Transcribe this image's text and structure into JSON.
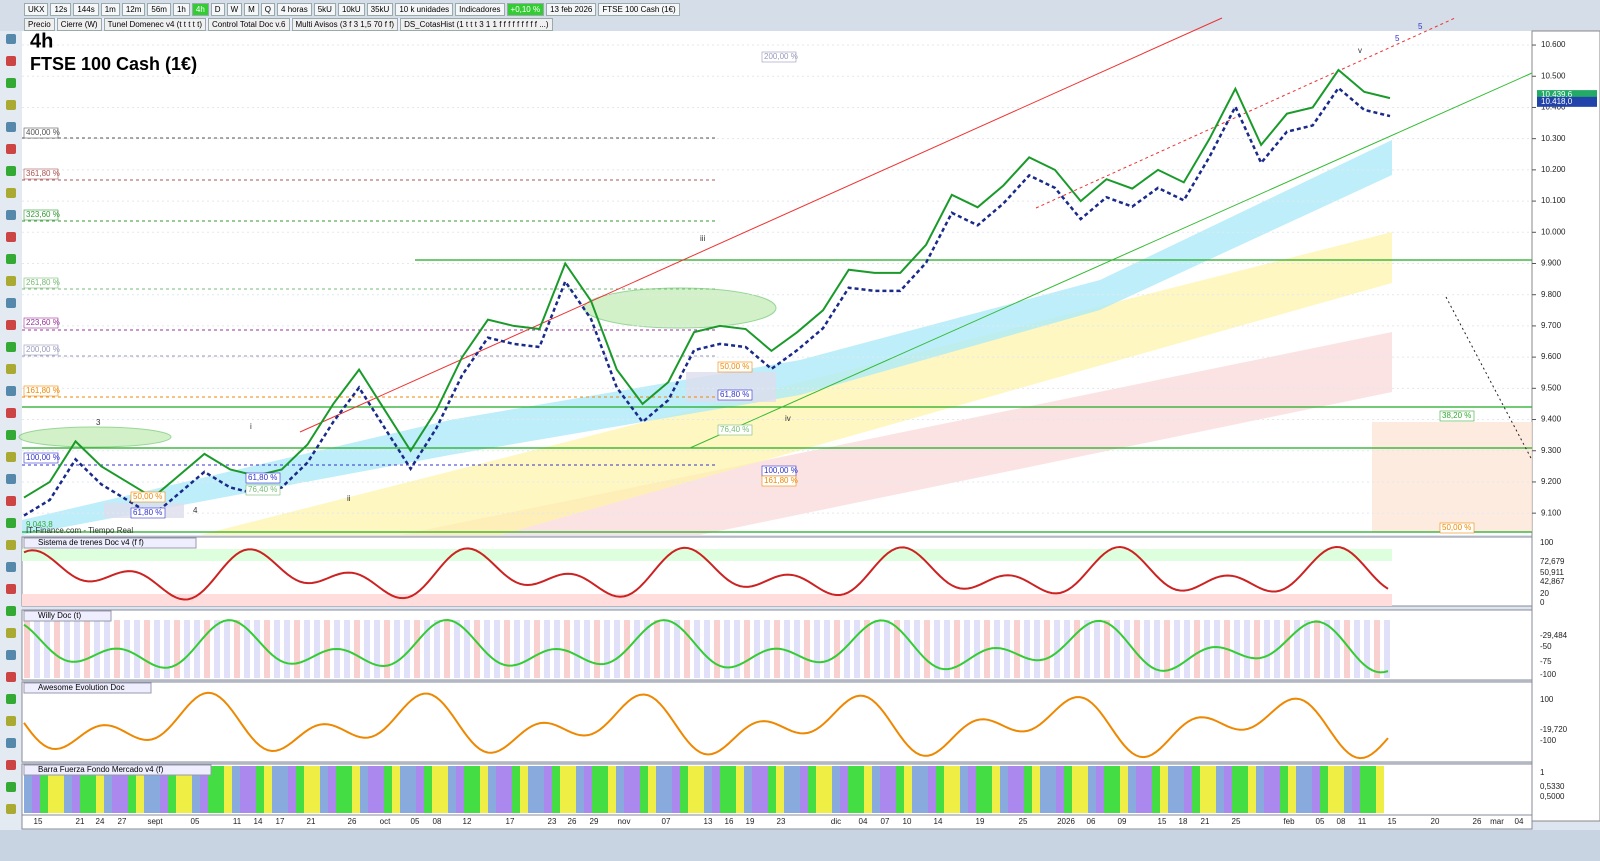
{
  "toolbar": {
    "symbol": "UKX",
    "timeframes": [
      "12s",
      "144s",
      "1m",
      "12m",
      "56m",
      "1h",
      "4h",
      "D",
      "W",
      "M",
      "Q"
    ],
    "period": "4 horas",
    "units": [
      "5kU",
      "10kU",
      "35kU"
    ],
    "units_select": "10 k unidades",
    "indicators": "Indicadores",
    "change": "+0,10 %",
    "date": "13 feb 2026",
    "instrument": "FTSE 100 Cash (1€)"
  },
  "legend_bar": [
    "Precio",
    "Cierre (W)",
    "Tunel Domenec v4 (t t t t t)",
    "Control Total Doc v.6",
    "Multi Avisos (3 f 3 1,5 70 f f)",
    "DS_CotasHist (1 t t t 3 1 1 f f f f f f f f f ...)"
  ],
  "chart": {
    "timeframe": "4h",
    "title": "FTSE 100 Cash (1€)",
    "source": "IT-Finance.com - Tiempo Real",
    "low_label": "9.043,8",
    "price_axis": {
      "ylim": [
        9030,
        10645
      ],
      "yticks": [
        {
          "value": 10600,
          "label": "10.600"
        },
        {
          "value": 10500,
          "label": "10.500"
        },
        {
          "value": 10400,
          "label": "10.400"
        },
        {
          "value": 10300,
          "label": "10.300"
        },
        {
          "value": 10200,
          "label": "10.200"
        },
        {
          "value": 10100,
          "label": "10.100"
        },
        {
          "value": 10000,
          "label": "10.000"
        },
        {
          "value": 9900,
          "label": "9.900"
        },
        {
          "value": 9800,
          "label": "9.800"
        },
        {
          "value": 9700,
          "label": "9.700"
        },
        {
          "value": 9600,
          "label": "9.600"
        },
        {
          "value": 9500,
          "label": "9.500"
        },
        {
          "value": 9400,
          "label": "9.400"
        },
        {
          "value": 9300,
          "label": "9.300"
        },
        {
          "value": 9200,
          "label": "9.200"
        },
        {
          "value": 9100,
          "label": "9.100"
        }
      ]
    },
    "last_price": {
      "value": 10439.6,
      "label": "10.439,6"
    },
    "prev_price": {
      "value": 10418,
      "label": "10.418,0"
    },
    "closes": [
      9150,
      9200,
      9330,
      9250,
      9200,
      9150,
      9220,
      9290,
      9240,
      9220,
      9240,
      9320,
      9450,
      9560,
      9430,
      9300,
      9430,
      9600,
      9720,
      9700,
      9690,
      9900,
      9780,
      9560,
      9450,
      9520,
      9680,
      9700,
      9690,
      9620,
      9680,
      9750,
      9880,
      9870,
      9870,
      9960,
      10120,
      10080,
      10150,
      10240,
      10200,
      10100,
      10170,
      10140,
      10200,
      10160,
      10300,
      10460,
      10280,
      10380,
      10400,
      10520,
      10450,
      10430
    ],
    "fib_labels": [
      "400,00 %",
      "361,80 %",
      "323,60 %",
      "261,80 %",
      "223,60 %",
      "200,00 %",
      "161,80 %",
      "100,00 %",
      "200,00 %",
      "50,00 %",
      "61,80 %",
      "76,40 %",
      "100,00 %",
      "161,80 %",
      "61,80 %",
      "76,40 %",
      "50,00 %",
      "61,80 %",
      "38,20 %",
      "50,00 %"
    ],
    "wave_labels": [
      "3",
      "i",
      "ii",
      "4",
      "iii",
      "iv",
      "v",
      "5",
      "5"
    ],
    "dates": [
      "15",
      "21",
      "24",
      "27",
      "sept",
      "05",
      "11",
      "14",
      "17",
      "21",
      "26",
      "oct",
      "05",
      "08",
      "12",
      "17",
      "23",
      "26",
      "29",
      "nov",
      "07",
      "13",
      "16",
      "19",
      "23",
      "dic",
      "04",
      "07",
      "10",
      "14",
      "19",
      "25",
      "2026",
      "06",
      "09",
      "15",
      "18",
      "21",
      "25",
      "feb",
      "05",
      "08",
      "11",
      "15",
      "20",
      "26",
      "mar",
      "04"
    ]
  },
  "panels": [
    {
      "title": "Sistema de trenes Doc v4 (f f)",
      "axis_labels": [
        "100",
        "72,679",
        "50,911",
        "42,867",
        "20",
        "0"
      ]
    },
    {
      "title": "Willy Doc (t)",
      "axis_labels": [
        "-29,484",
        "-50",
        "-75",
        "-100"
      ]
    },
    {
      "title": "Awesome Evolution Doc",
      "axis_labels": [
        "100",
        "-19,720",
        "-100"
      ]
    },
    {
      "title": "Barra Fuerza Fondo Mercado v4 (f)",
      "axis_labels": [
        "1",
        "0,5330",
        "0,5000"
      ]
    }
  ]
}
